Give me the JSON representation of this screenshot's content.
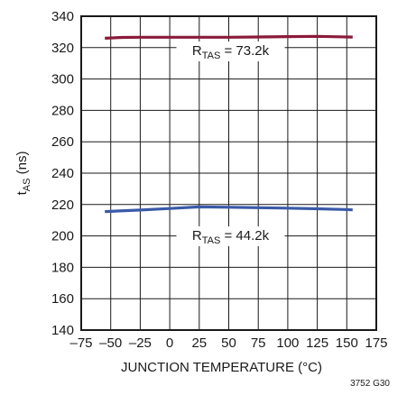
{
  "chart_data": {
    "type": "line",
    "title": "",
    "xlabel": "JUNCTION TEMPERATURE (°C)",
    "ylabel": {
      "main": "t",
      "sub": "AS",
      "unit": " (ns)"
    },
    "xlim": [
      -75,
      175
    ],
    "ylim": [
      140,
      340
    ],
    "xticks": [
      -75,
      -50,
      -25,
      0,
      25,
      50,
      75,
      100,
      125,
      150,
      175
    ],
    "xtick_labels": [
      "–75",
      "–50",
      "–25",
      "0",
      "25",
      "50",
      "75",
      "100",
      "125",
      "150",
      "175"
    ],
    "yticks": [
      140,
      160,
      180,
      200,
      220,
      240,
      260,
      280,
      300,
      320,
      340
    ],
    "ytick_labels": [
      "140",
      "160",
      "180",
      "200",
      "220",
      "240",
      "260",
      "280",
      "300",
      "320",
      "340"
    ],
    "grid": true,
    "series": [
      {
        "color": "#8b1a3a",
        "x": [
          -55,
          -40,
          -25,
          0,
          25,
          50,
          75,
          100,
          125,
          150,
          155
        ],
        "y": [
          326.0,
          326.5,
          326.6,
          326.6,
          326.6,
          326.6,
          326.8,
          327.0,
          327.2,
          326.8,
          326.7
        ],
        "annotation": {
          "prefix": "R",
          "sub": "TAS",
          "suffix": " = 73.2k"
        }
      },
      {
        "color": "#3a5aa8",
        "x": [
          -55,
          -25,
          0,
          25,
          50,
          75,
          100,
          125,
          150,
          155
        ],
        "y": [
          215.5,
          216.5,
          217.5,
          218.5,
          218.3,
          218.0,
          217.7,
          217.3,
          216.8,
          216.6
        ],
        "annotation": {
          "prefix": "R",
          "sub": "TAS",
          "suffix": " = 44.2k"
        }
      }
    ],
    "figure_id": "3752 G30"
  }
}
